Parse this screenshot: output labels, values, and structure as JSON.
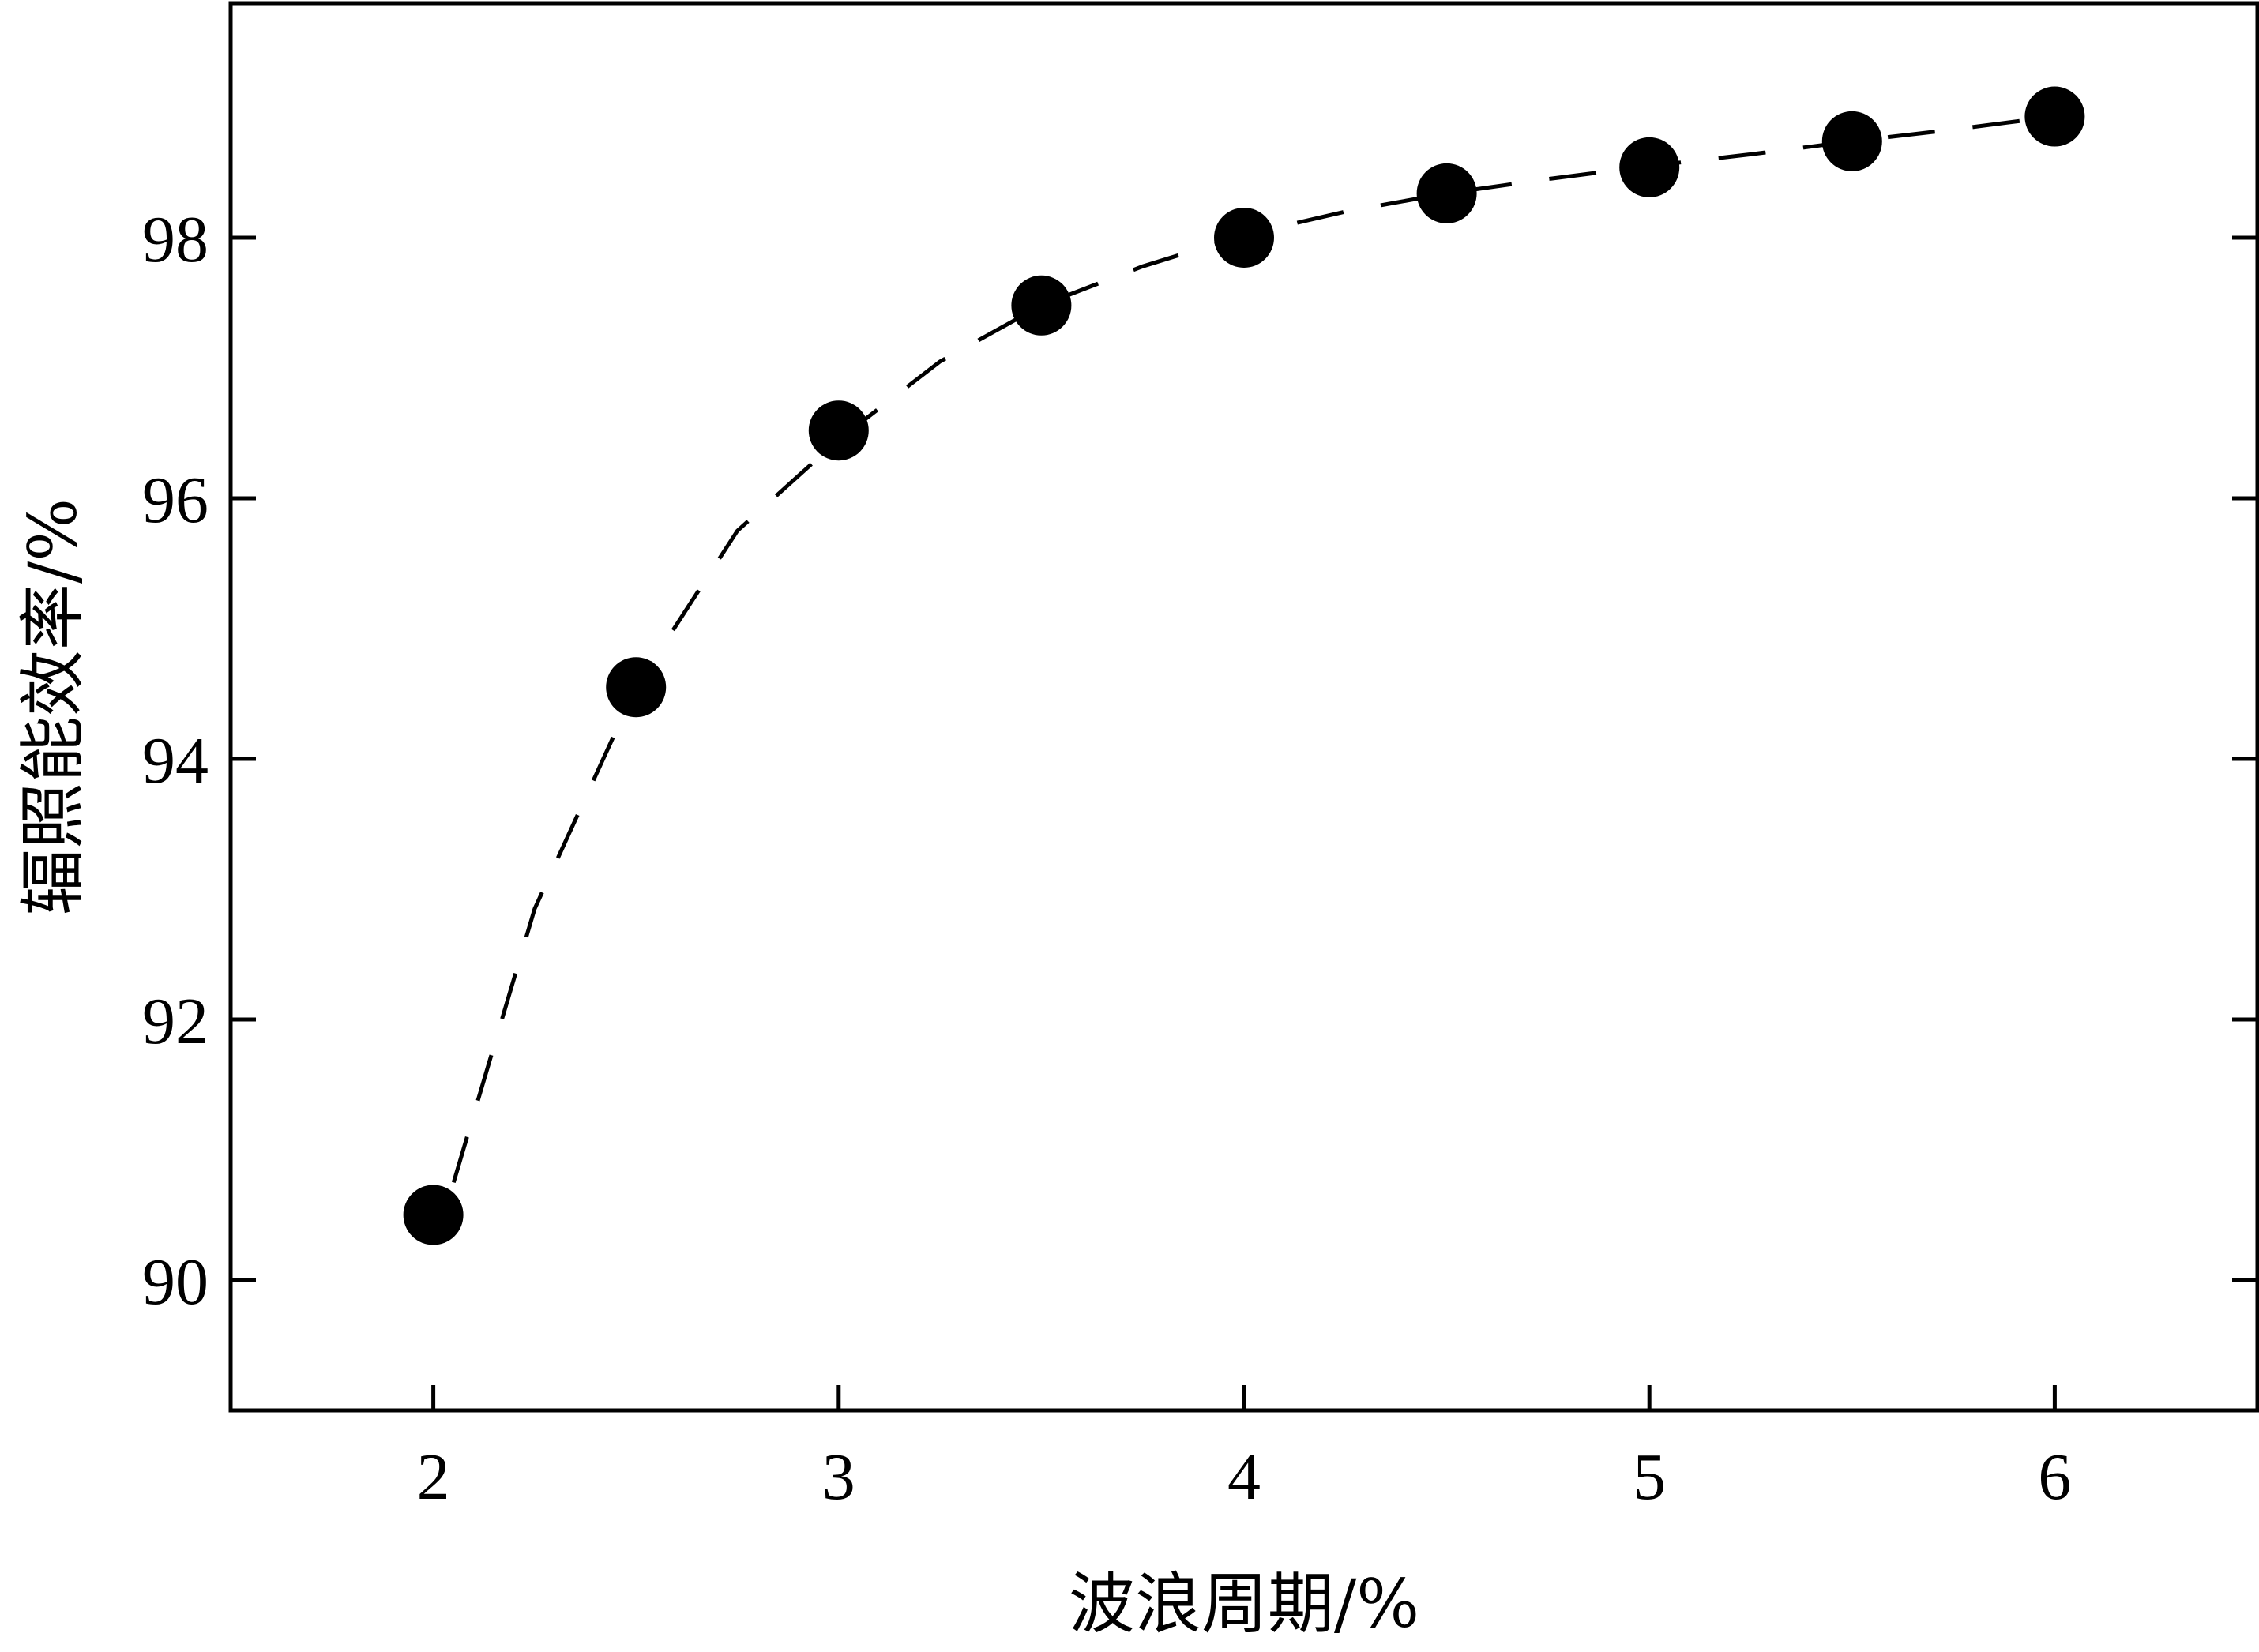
{
  "chart_data": {
    "type": "scatter",
    "title": "",
    "xlabel": "波浪周期/%",
    "ylabel": "辐照能效率/%",
    "xlim": [
      1.5,
      6.5
    ],
    "ylim": [
      89,
      99.8
    ],
    "xticks": [
      2,
      3,
      4,
      5,
      6
    ],
    "yticks": [
      90,
      92,
      94,
      96,
      98
    ],
    "grid": false,
    "legend": "none",
    "series": [
      {
        "marker": "filled-circle",
        "color": "#000000",
        "x": [
          2,
          2.5,
          3,
          3.5,
          4,
          4.5,
          5,
          5.5,
          6
        ],
        "y": [
          90.5,
          94.55,
          96.52,
          97.48,
          98.0,
          98.34,
          98.54,
          98.74,
          98.93
        ]
      }
    ],
    "trend_line": {
      "style": "dashed",
      "color": "#000000",
      "x": [
        2.05,
        2.25,
        2.5,
        2.75,
        3,
        3.25,
        3.5,
        3.75,
        4,
        4.25,
        4.5,
        4.75,
        5,
        5.25,
        5.5,
        5.75,
        6
      ],
      "y": [
        90.75,
        92.85,
        94.55,
        95.75,
        96.45,
        97.05,
        97.48,
        97.78,
        98.02,
        98.2,
        98.34,
        98.45,
        98.55,
        98.64,
        98.74,
        98.83,
        98.93
      ]
    }
  }
}
